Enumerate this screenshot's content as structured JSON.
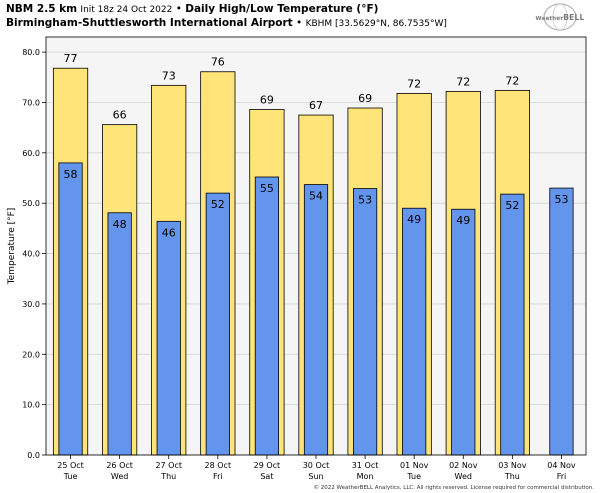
{
  "header": {
    "model": "NBM 2.5 km",
    "init": "Init 18z 24 Oct 2022",
    "sep1": "•",
    "title": "Daily High/Low Temperature (°F)",
    "location": "Birmingham-Shuttlesworth International Airport",
    "sep2": "•",
    "station": "KBHM [33.5629°N, 86.7535°W]"
  },
  "logo": {
    "small": "Weather",
    "large": "BELL"
  },
  "copyright": "© 2022 WeatherBELL Analytics, LLC. All rights reserved. License required for commercial distribution.",
  "colors": {
    "high": "#ffe47a",
    "low": "#6495ed",
    "plot_bg": "#f5f5f5",
    "edge": "#000000",
    "grid": "#d3d3d3"
  },
  "chart_data": {
    "type": "bar",
    "ylabel": "Temperature [°F]",
    "ylim": [
      0,
      83
    ],
    "yticks": [
      "0.0",
      "10.0",
      "20.0",
      "30.0",
      "40.0",
      "50.0",
      "60.0",
      "70.0",
      "80.0"
    ],
    "grid": true,
    "categories": [
      [
        "25 Oct",
        "Tue"
      ],
      [
        "26 Oct",
        "Wed"
      ],
      [
        "27 Oct",
        "Thu"
      ],
      [
        "28 Oct",
        "Fri"
      ],
      [
        "29 Oct",
        "Sat"
      ],
      [
        "30 Oct",
        "Sun"
      ],
      [
        "31 Oct",
        "Mon"
      ],
      [
        "01 Nov",
        "Tue"
      ],
      [
        "02 Nov",
        "Wed"
      ],
      [
        "03 Nov",
        "Thu"
      ],
      [
        "04 Nov",
        "Fri"
      ]
    ],
    "series": [
      {
        "values": [
          76.8,
          65.6,
          73.4,
          76.1,
          68.6,
          67.5,
          68.9,
          71.8,
          72.2,
          72.4,
          null
        ],
        "labels": [
          "77",
          "66",
          "73",
          "76",
          "69",
          "67",
          "69",
          "72",
          "72",
          "72",
          null
        ]
      },
      {
        "values": [
          58.0,
          48.1,
          46.4,
          52.0,
          55.2,
          53.7,
          52.9,
          49.0,
          48.8,
          51.8,
          53.0
        ],
        "labels": [
          "58",
          "48",
          "46",
          "52",
          "55",
          "54",
          "53",
          "49",
          "49",
          "52",
          "53"
        ]
      }
    ]
  }
}
